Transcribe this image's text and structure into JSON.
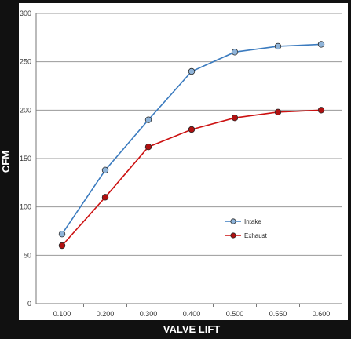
{
  "chart_data": {
    "type": "line",
    "xlabel": "VALVE LIFT",
    "ylabel": "CFM",
    "categories": [
      "0.100",
      "0.200",
      "0.300",
      "0.400",
      "0.500",
      "0.550",
      "0.600"
    ],
    "ylim": [
      0,
      300
    ],
    "yticks": [
      "0",
      "50",
      "100",
      "150",
      "200",
      "250",
      "300"
    ],
    "grid": "horizontal",
    "legend_position": "center-right",
    "series": [
      {
        "name": "Intake",
        "values": [
          72,
          138,
          190,
          240,
          260,
          266,
          268
        ],
        "color": "#3b7bbf",
        "marker_fill": "#8fb4d9"
      },
      {
        "name": "Exhaust",
        "values": [
          60,
          110,
          162,
          180,
          192,
          198,
          200
        ],
        "color": "#cc1111",
        "marker_fill": "#b01010"
      }
    ]
  }
}
